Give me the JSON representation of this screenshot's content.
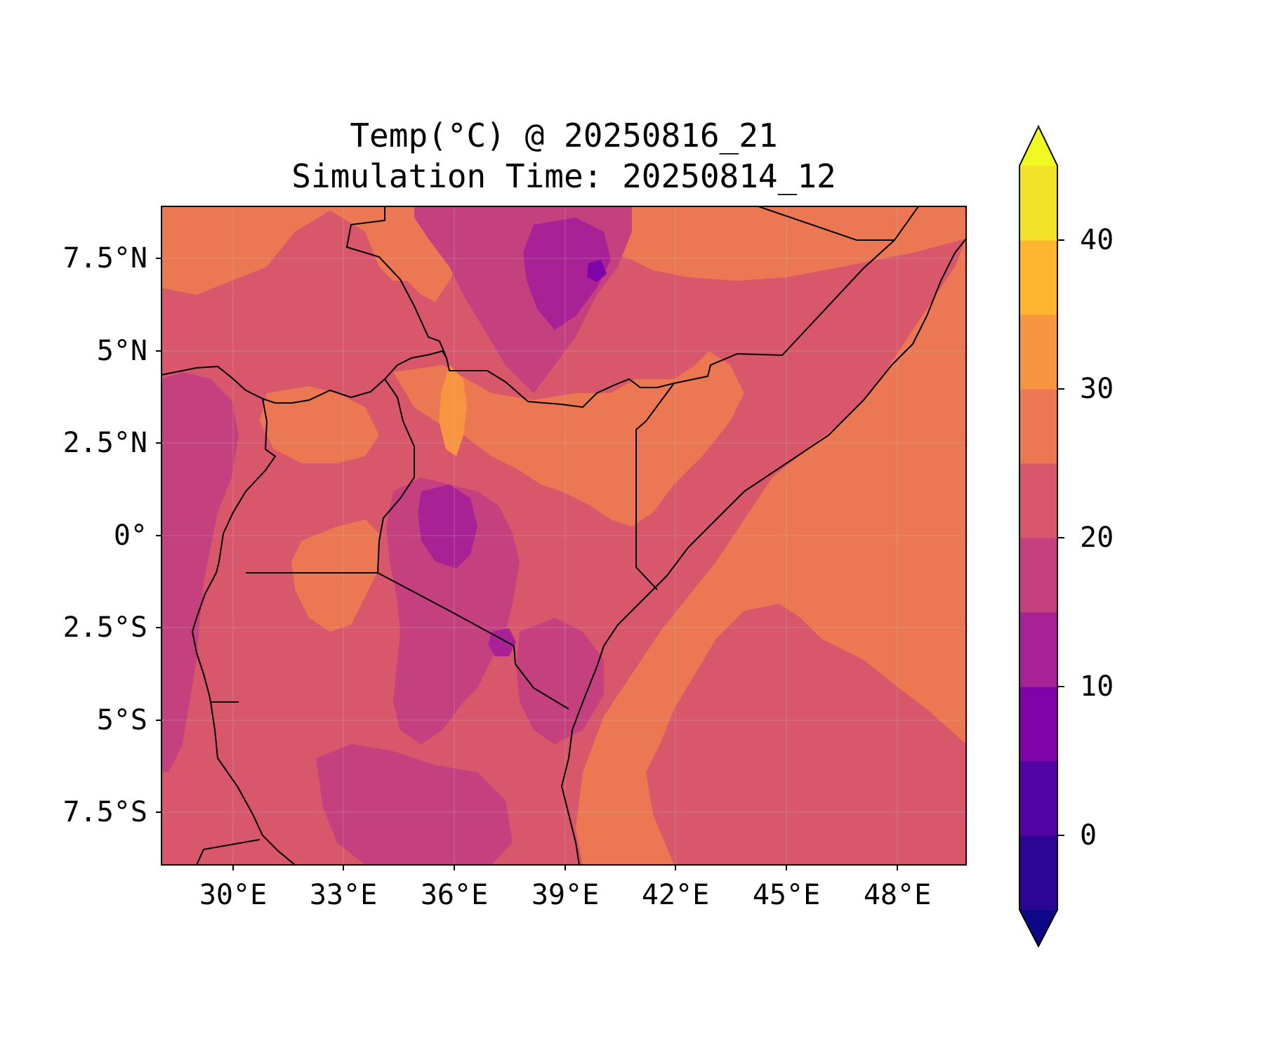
{
  "chart_data": {
    "type": "filled-contour-map",
    "title": "Temp(°C) @ 20250816_21",
    "subtitle": "Simulation Time: 20250814_12",
    "x_ticks": [
      "30°E",
      "33°E",
      "36°E",
      "39°E",
      "42°E",
      "45°E",
      "48°E"
    ],
    "x_tick_values": [
      30,
      33,
      36,
      39,
      42,
      45,
      48
    ],
    "y_ticks": [
      "7.5°N",
      "5°N",
      "2.5°N",
      "0°",
      "2.5°S",
      "5°S",
      "7.5°S"
    ],
    "y_tick_values": [
      7.5,
      5,
      2.5,
      0,
      -2.5,
      -5,
      -7.5
    ],
    "xlim": [
      28,
      49.8
    ],
    "ylim": [
      -9,
      8.8
    ],
    "grid": true,
    "colorbar": {
      "orientation": "vertical",
      "extend": "both",
      "levels": [
        -5,
        0,
        5,
        10,
        15,
        20,
        25,
        30,
        35,
        40,
        45
      ],
      "tick_labels": [
        "0",
        "10",
        "20",
        "30",
        "40"
      ],
      "tick_values": [
        0,
        10,
        20,
        30,
        40
      ],
      "colors": [
        "#0d0887",
        "#2c0594",
        "#5302a3",
        "#7e03a8",
        "#a82296",
        "#c5407e",
        "#d8576b",
        "#ec7853",
        "#f89540",
        "#fdb42f",
        "#f3e22a",
        "#f0f921"
      ]
    }
  }
}
